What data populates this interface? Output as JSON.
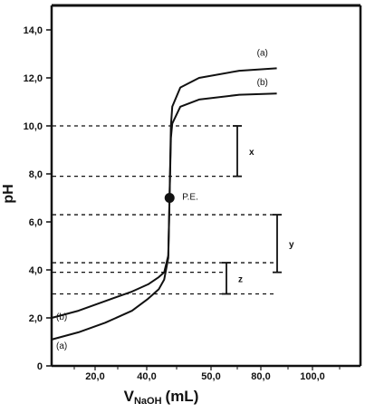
{
  "chart_data": {
    "type": "line",
    "ylabel": "pH",
    "xlabel_main": "V",
    "xlabel_sub": "NaOH",
    "xlabel_unit": "(mL)",
    "y_ticks": [
      "0",
      "2,0",
      "4,0",
      "6,0",
      "8,0",
      "10,0",
      "12,0",
      "14,0"
    ],
    "x_ticks": [
      "20,0",
      "40,0",
      "50,0",
      "80,0",
      "100,0"
    ],
    "ylim": [
      0,
      14
    ],
    "series": [
      {
        "name": "(a)",
        "name_start": "(a)",
        "points": [
          [
            0,
            1.1
          ],
          [
            10,
            1.4
          ],
          [
            20,
            1.8
          ],
          [
            30,
            2.3
          ],
          [
            36,
            2.8
          ],
          [
            40,
            3.2
          ],
          [
            42,
            3.6
          ],
          [
            43.5,
            4.5
          ],
          [
            44,
            7.0
          ],
          [
            44.5,
            10.0
          ],
          [
            45,
            10.8
          ],
          [
            48,
            11.6
          ],
          [
            55,
            12.0
          ],
          [
            70,
            12.3
          ],
          [
            84,
            12.4
          ]
        ]
      },
      {
        "name": "(b)",
        "name_start": "(b)",
        "points": [
          [
            0,
            2.0
          ],
          [
            10,
            2.3
          ],
          [
            20,
            2.7
          ],
          [
            30,
            3.1
          ],
          [
            36,
            3.4
          ],
          [
            40,
            3.7
          ],
          [
            42,
            3.9
          ],
          [
            43.5,
            4.6
          ],
          [
            44,
            7.0
          ],
          [
            44.5,
            9.5
          ],
          [
            45,
            10.1
          ],
          [
            48,
            10.8
          ],
          [
            55,
            11.1
          ],
          [
            70,
            11.3
          ],
          [
            84,
            11.35
          ]
        ]
      }
    ],
    "equivalence_point": {
      "label": "P.E.",
      "x": 44,
      "y": 7.0
    },
    "reference_lines_y": [
      10.0,
      7.9,
      6.3,
      4.3,
      3.9,
      3.0
    ],
    "brackets": [
      {
        "label": "x",
        "from": 7.9,
        "to": 10.0
      },
      {
        "label": "y",
        "from": 3.9,
        "to": 6.3
      },
      {
        "label": "z",
        "from": 3.0,
        "to": 4.3
      }
    ]
  }
}
